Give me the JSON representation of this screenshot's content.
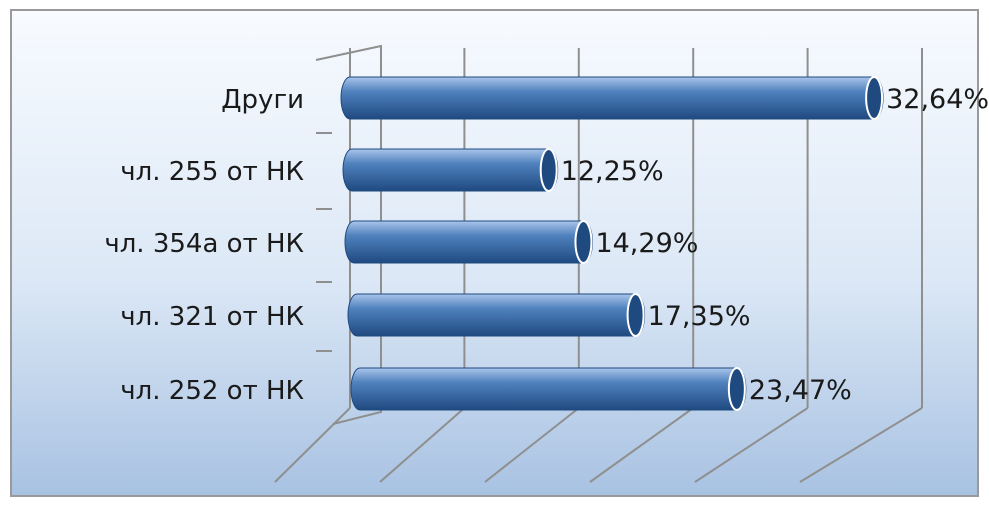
{
  "chart_data": {
    "type": "bar",
    "orientation": "horizontal",
    "style": "3d-cylinder",
    "categories": [
      "Други",
      "чл. 255 от НК",
      "чл. 354а от НК",
      "чл. 321 от НК",
      "чл. 252 от НК"
    ],
    "values": [
      32.64,
      12.25,
      14.29,
      17.35,
      23.47
    ],
    "data_labels": [
      "32,64%",
      "12,25%",
      "14,29%",
      "17,35%",
      "23,47%"
    ],
    "unit": "%",
    "title": "",
    "xlabel": "",
    "ylabel": "",
    "xlim": [
      0,
      35
    ],
    "grid": true,
    "legend": "none",
    "colors": {
      "bar_fill": "#4f81bd",
      "bar_dark": "#1f4a80",
      "bar_light": "#a9c5ea",
      "background_top": "#f8fbff",
      "background_bottom": "#a8c2e2",
      "gridline": "#8f8f8f",
      "frame": "#9a9a9a",
      "label_text": "#1a1a1a"
    }
  }
}
